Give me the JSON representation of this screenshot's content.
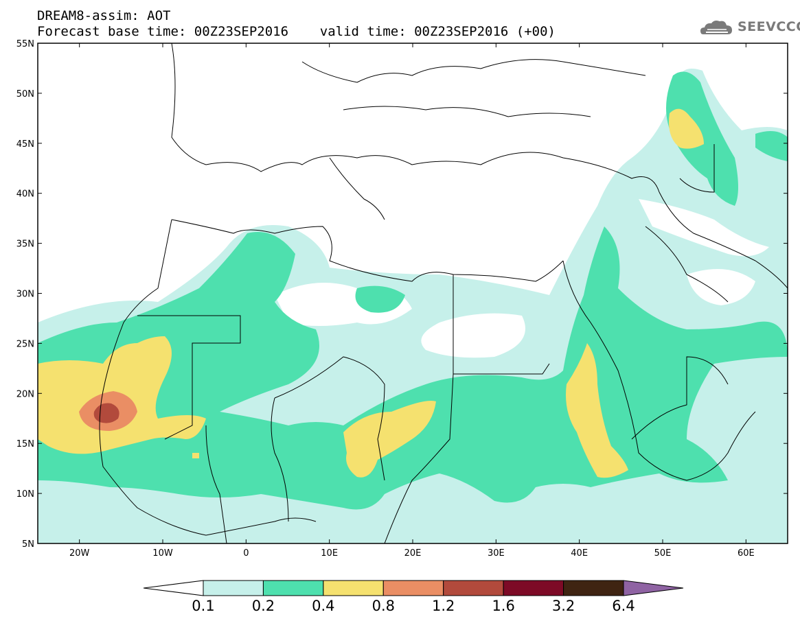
{
  "header": {
    "line1": "DREAM8-assim: AOT",
    "line2": "Forecast base time: 00Z23SEP2016    valid time: 00Z23SEP2016 (+00)"
  },
  "logo": {
    "text": "SEEVCCC",
    "icon": "cloud-icon",
    "color": "#7a7a7a"
  },
  "map": {
    "lon_range": [
      -25,
      65
    ],
    "lat_range": [
      5,
      55
    ],
    "lat_ticks": [
      {
        "value": 55,
        "label": "55N"
      },
      {
        "value": 50,
        "label": "50N"
      },
      {
        "value": 45,
        "label": "45N"
      },
      {
        "value": 40,
        "label": "40N"
      },
      {
        "value": 35,
        "label": "35N"
      },
      {
        "value": 30,
        "label": "30N"
      },
      {
        "value": 25,
        "label": "25N"
      },
      {
        "value": 20,
        "label": "20N"
      },
      {
        "value": 15,
        "label": "15N"
      },
      {
        "value": 10,
        "label": "10N"
      },
      {
        "value": 5,
        "label": "5N"
      }
    ],
    "lon_ticks": [
      {
        "value": -20,
        "label": "20W"
      },
      {
        "value": -10,
        "label": "10W"
      },
      {
        "value": 0,
        "label": "0"
      },
      {
        "value": 10,
        "label": "10E"
      },
      {
        "value": 20,
        "label": "20E"
      },
      {
        "value": 30,
        "label": "30E"
      },
      {
        "value": 40,
        "label": "40E"
      },
      {
        "value": 50,
        "label": "50E"
      },
      {
        "value": 60,
        "label": "60E"
      }
    ]
  },
  "colorbar": {
    "levels": [
      "0.1",
      "0.2",
      "0.4",
      "0.8",
      "1.2",
      "1.6",
      "3.2",
      "6.4"
    ],
    "colors": [
      "#ffffff",
      "#c6f0ea",
      "#4ee0ae",
      "#f5e16f",
      "#ea8e64",
      "#b24a3c",
      "#7d0a26",
      "#3f2412",
      "#8f63a3"
    ]
  }
}
